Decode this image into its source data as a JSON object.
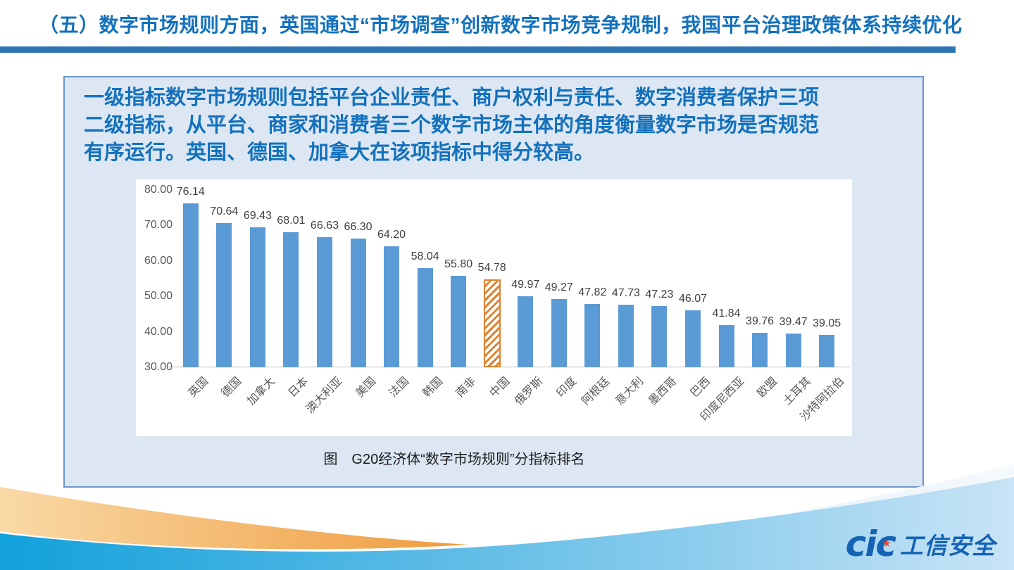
{
  "slide": {
    "title": "（五）数字市场规则方面，英国通过“市场调查”创新数字市场竞争规制，我国平台治理政策体系持续优化",
    "paragraph_lines": [
      "一级指标数字市场规则包括平台企业责任、商户权利与责任、数字消费者保护三项",
      "二级指标，从平台、商家和消费者三个数字市场主体的角度衡量数字市场是否规范",
      "有序运行。英国、德国、加拿大在该项指标中得分较高。"
    ],
    "caption": "图　G20经济体“数字市场规则”分指标排名"
  },
  "logo": {
    "brand_first": "ci",
    "brand_last": "c",
    "star": "★",
    "name": "工信安全"
  },
  "colors": {
    "title_blue": "#1371BD",
    "title_rule_blue": "#2E75B6",
    "paragraph_blue": "#1371BD",
    "box_fill": "#DCE7F3",
    "box_border": "#6C96C9",
    "bar_blue": "#5B9BD5",
    "highlight_orange": "#E0812E",
    "axis_gray": "#BFBFBF",
    "label_gray": "#595959",
    "bottom_blue": "#12A1DB",
    "bottom_orange": "#F2A04A",
    "logo_blue": "#1463B5"
  },
  "chart_data": {
    "type": "bar",
    "title": "",
    "xlabel": "",
    "ylabel": "",
    "categories": [
      "英国",
      "德国",
      "加拿大",
      "日本",
      "澳大利亚",
      "美国",
      "法国",
      "韩国",
      "南非",
      "中国",
      "俄罗斯",
      "印度",
      "阿根廷",
      "意大利",
      "墨西哥",
      "巴西",
      "印度尼西亚",
      "欧盟",
      "土耳其",
      "沙特阿拉伯"
    ],
    "values": [
      76.14,
      70.64,
      69.43,
      68.01,
      66.63,
      66.3,
      64.2,
      58.04,
      55.8,
      54.78,
      49.97,
      49.27,
      47.82,
      47.73,
      47.23,
      46.07,
      41.84,
      39.76,
      39.47,
      39.05
    ],
    "value_labels": [
      "76.14",
      "70.64",
      "69.43",
      "68.01",
      "66.63",
      "66.30",
      "64.20",
      "58.04",
      "55.80",
      "54.78",
      "49.97",
      "49.27",
      "47.82",
      "47.73",
      "47.23",
      "46.07",
      "41.84",
      "39.76",
      "39.47",
      "39.05"
    ],
    "highlight_index": 9,
    "highlight_category": "中国",
    "highlight_style": "orange-hatched",
    "ylim": [
      30,
      80
    ],
    "yticks": [
      80,
      70,
      60,
      50,
      40,
      30
    ],
    "ytick_labels": [
      "80.00",
      "70.00",
      "60.00",
      "50.00",
      "40.00",
      "30.00"
    ],
    "grid": false,
    "legend": null,
    "bar_color": "#5B9BD5"
  }
}
